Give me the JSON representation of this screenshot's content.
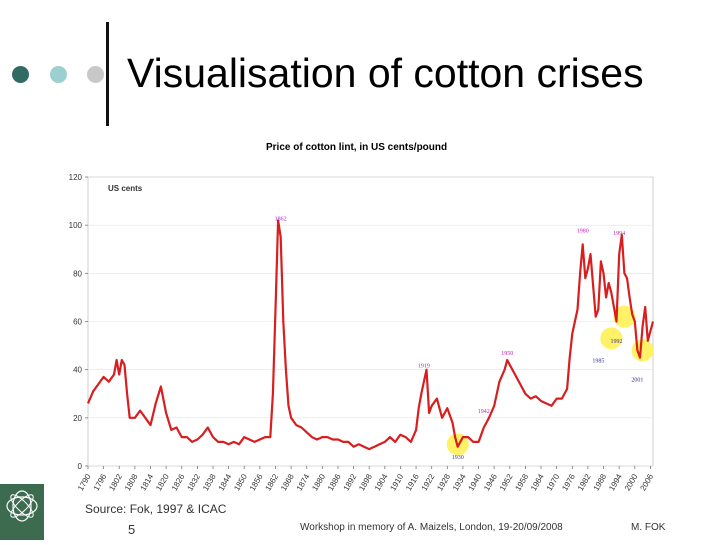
{
  "slide": {
    "title": "Visualisation of cotton crises",
    "source": "Source: Fok, 1997 & ICAC",
    "number": "5",
    "footer": "Workshop in memory of A. Maizels, London, 19-20/09/2008",
    "author": "M. FOK",
    "logo_text": "CIRAD"
  },
  "colors": {
    "line": "#d81e1e",
    "annotation": "#c020c0",
    "highlight": "#fff266",
    "dot1": "#2f6b62",
    "dot2": "#9ccfcf",
    "dot3": "#c8c8c8"
  },
  "chart_data": {
    "type": "line",
    "title": "Price of cotton lint, in US cents/pound",
    "ylabel": "US cents",
    "ylim": [
      0,
      120
    ],
    "yticks": [
      0,
      20,
      40,
      60,
      80,
      100,
      120
    ],
    "xlim": [
      1790,
      2007
    ],
    "xticks": [
      "1790",
      "1796",
      "1802",
      "1808",
      "1814",
      "1820",
      "1826",
      "1832",
      "1838",
      "1844",
      "1850",
      "1856",
      "1862",
      "1868",
      "1874",
      "1880",
      "1886",
      "1892",
      "1898",
      "1904",
      "1910",
      "1916",
      "1922",
      "1928",
      "1934",
      "1940",
      "1946",
      "1952",
      "1958",
      "1964",
      "1970",
      "1976",
      "1982",
      "1988",
      "1994",
      "2000",
      "2006"
    ],
    "annotations": [
      {
        "label": "1862",
        "x": 1864,
        "y": 102
      },
      {
        "label": "1919",
        "x": 1919,
        "y": 41
      },
      {
        "label": "1930",
        "x": 1932,
        "y": 3
      },
      {
        "label": "1942",
        "x": 1942,
        "y": 22
      },
      {
        "label": "1950",
        "x": 1951,
        "y": 46
      },
      {
        "label": "1980",
        "x": 1980,
        "y": 97
      },
      {
        "label": "1994",
        "x": 1994,
        "y": 96
      },
      {
        "label": "1985",
        "x": 1986,
        "y": 43
      },
      {
        "label": "1992",
        "x": 1993,
        "y": 51
      },
      {
        "label": "2001",
        "x": 2001,
        "y": 35
      }
    ],
    "highlights": [
      {
        "x": 1932,
        "y": 9
      },
      {
        "x": 1991,
        "y": 53
      },
      {
        "x": 1996,
        "y": 62
      },
      {
        "x": 2003,
        "y": 48
      }
    ],
    "series": [
      {
        "x": [
          1790,
          1792,
          1794,
          1796,
          1798,
          1800,
          1801,
          1802,
          1803,
          1804,
          1805,
          1806,
          1808,
          1810,
          1812,
          1814,
          1816,
          1818,
          1820,
          1822,
          1824,
          1826,
          1828,
          1830,
          1832,
          1834,
          1836,
          1838,
          1840,
          1842,
          1844,
          1846,
          1848,
          1850,
          1852,
          1854,
          1856,
          1858,
          1860,
          1861,
          1862,
          1863,
          1864,
          1865,
          1866,
          1867,
          1868,
          1870,
          1872,
          1874,
          1876,
          1878,
          1880,
          1882,
          1884,
          1886,
          1888,
          1890,
          1892,
          1894,
          1896,
          1898,
          1900,
          1902,
          1904,
          1906,
          1908,
          1910,
          1912,
          1914,
          1916,
          1917,
          1918,
          1919,
          1920,
          1921,
          1922,
          1924,
          1926,
          1928,
          1930,
          1931,
          1932,
          1934,
          1936,
          1938,
          1940,
          1942,
          1944,
          1946,
          1948,
          1950,
          1951,
          1952,
          1954,
          1956,
          1958,
          1960,
          1962,
          1964,
          1966,
          1968,
          1970,
          1972,
          1974,
          1975,
          1976,
          1977,
          1978,
          1979,
          1980,
          1981,
          1982,
          1983,
          1984,
          1985,
          1986,
          1987,
          1988,
          1989,
          1990,
          1991,
          1992,
          1993,
          1994,
          1995,
          1996,
          1997,
          1998,
          1999,
          2000,
          2001,
          2002,
          2003,
          2004,
          2005,
          2006,
          2007
        ],
        "y": [
          26,
          31,
          34,
          37,
          35,
          38,
          44,
          38,
          44,
          42,
          30,
          20,
          20,
          23,
          20,
          17,
          26,
          33,
          22,
          15,
          16,
          12,
          12,
          10,
          11,
          13,
          16,
          12,
          10,
          10,
          9,
          10,
          9,
          12,
          11,
          10,
          11,
          12,
          12,
          30,
          65,
          102,
          95,
          60,
          40,
          25,
          20,
          17,
          16,
          14,
          12,
          11,
          12,
          12,
          11,
          11,
          10,
          10,
          8,
          9,
          8,
          7,
          8,
          9,
          10,
          12,
          10,
          13,
          12,
          10,
          15,
          24,
          30,
          35,
          40,
          22,
          25,
          28,
          20,
          24,
          18,
          12,
          8,
          12,
          12,
          10,
          10,
          16,
          20,
          25,
          35,
          40,
          44,
          42,
          38,
          34,
          30,
          28,
          29,
          27,
          26,
          25,
          28,
          28,
          32,
          45,
          55,
          60,
          65,
          80,
          92,
          78,
          82,
          88,
          75,
          62,
          65,
          85,
          80,
          70,
          76,
          72,
          66,
          60,
          88,
          96,
          80,
          78,
          70,
          63,
          60,
          48,
          45,
          58,
          66,
          52,
          56,
          60
        ]
      }
    ]
  }
}
